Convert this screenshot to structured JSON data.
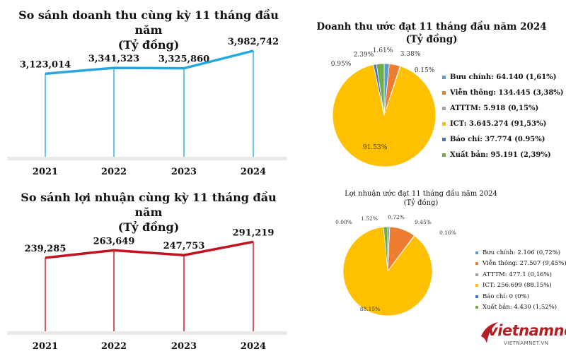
{
  "chart_data": [
    {
      "type": "line",
      "title": "So sánh doanh thu cùng kỳ 11 tháng đầu năm",
      "subtitle": "(Tỷ đồng)",
      "categories": [
        "2021",
        "2022",
        "2023",
        "2024"
      ],
      "values": [
        3123014,
        3341323,
        3325860,
        3982742
      ],
      "value_labels": [
        "3,123,014",
        "3,341,323",
        "3,325,860",
        "3,982,742"
      ],
      "color": "#27a7e0",
      "ylim": [
        0,
        4300000
      ],
      "grid": false
    },
    {
      "type": "line",
      "title": "So sánh lợi nhuận cùng kỳ 11 tháng đầu năm",
      "subtitle": "(Tỷ đồng)",
      "categories": [
        "2021",
        "2022",
        "2023",
        "2024"
      ],
      "values": [
        239285,
        263649,
        247753,
        291219
      ],
      "value_labels": [
        "239,285",
        "263,649",
        "247,753",
        "291,219"
      ],
      "color": "#c1121f",
      "ylim": [
        0,
        315000
      ],
      "grid": false
    },
    {
      "type": "pie",
      "title": "Doanh thu ước đạt 11 tháng đầu năm 2024",
      "subtitle": "(Tỷ đồng)",
      "legend_position": "right",
      "slices": [
        {
          "label": "Bưu chính: 64.140 (1,61%)",
          "value": 1.61,
          "pct_label": "1.61%",
          "color": "#5b9bd5"
        },
        {
          "label": "Viễn thông: 134.445 (3,38%)",
          "value": 3.38,
          "pct_label": "3.38%",
          "color": "#ed7d31"
        },
        {
          "label": "ATTTM: 5.918 (0,15%)",
          "value": 0.15,
          "pct_label": "0.15%",
          "color": "#a5a5a5"
        },
        {
          "label": "ICT: 3.645.274 (91,53%)",
          "value": 91.53,
          "pct_label": "91.53%",
          "color": "#ffc000"
        },
        {
          "label": "Báo chí: 37.774 (0.95%)",
          "value": 0.95,
          "pct_label": "0.95%",
          "color": "#4472c4"
        },
        {
          "label": "Xuất bản: 95.191 (2,39%)",
          "value": 2.39,
          "pct_label": "2.39%",
          "color": "#70ad47"
        }
      ]
    },
    {
      "type": "pie",
      "title": "Lợi nhuận ước đạt 11 tháng đầu năm 2024",
      "subtitle": "(Tỷ đồng)",
      "legend_position": "right",
      "slices": [
        {
          "label": "Bưu chính: 2.106 (0,72%)",
          "value": 0.72,
          "pct_label": "0.72%",
          "color": "#5b9bd5"
        },
        {
          "label": "Viễn thông: 27.507 (9,45%)",
          "value": 9.45,
          "pct_label": "9.45%",
          "color": "#ed7d31"
        },
        {
          "label": "ATTTM: 477.1 (0,16%)",
          "value": 0.16,
          "pct_label": "0.16%",
          "color": "#a5a5a5"
        },
        {
          "label": "ICT: 256.699 (88.15%)",
          "value": 88.15,
          "pct_label": "88.15%",
          "color": "#ffc000"
        },
        {
          "label": "Báo chí: 0 (0%)",
          "value": 0,
          "pct_label": "0.00%",
          "color": "#4472c4"
        },
        {
          "label": "Xuất bản: 4.430 (1,52%)",
          "value": 1.52,
          "pct_label": "1.52%",
          "color": "#70ad47"
        }
      ]
    }
  ],
  "branding": {
    "logo_text": "vietnamnet",
    "logo_url": "VIETNAMNET.VN",
    "logo_color": "#b51e24"
  }
}
